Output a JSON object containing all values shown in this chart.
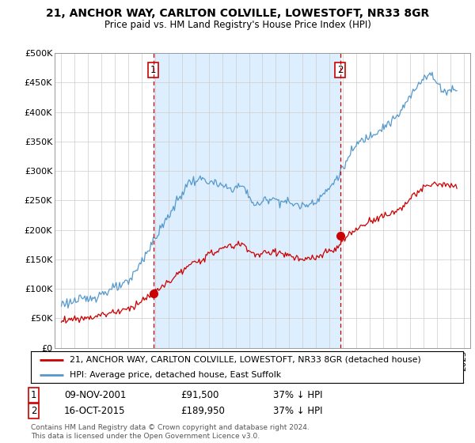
{
  "title": "21, ANCHOR WAY, CARLTON COLVILLE, LOWESTOFT, NR33 8GR",
  "subtitle": "Price paid vs. HM Land Registry's House Price Index (HPI)",
  "legend_line1": "21, ANCHOR WAY, CARLTON COLVILLE, LOWESTOFT, NR33 8GR (detached house)",
  "legend_line2": "HPI: Average price, detached house, East Suffolk",
  "footnote": "Contains HM Land Registry data © Crown copyright and database right 2024.\nThis data is licensed under the Open Government Licence v3.0.",
  "sale1_label": "1",
  "sale1_date": "09-NOV-2001",
  "sale1_price": "£91,500",
  "sale1_hpi": "37% ↓ HPI",
  "sale1_year": 2001.86,
  "sale1_value": 91500,
  "sale2_label": "2",
  "sale2_date": "16-OCT-2015",
  "sale2_price": "£189,950",
  "sale2_hpi": "37% ↓ HPI",
  "sale2_year": 2015.79,
  "sale2_value": 189950,
  "red_color": "#cc0000",
  "blue_color": "#5599cc",
  "shade_color": "#ddeeff",
  "dashed_color": "#cc0000",
  "background_color": "#ffffff",
  "grid_color": "#cccccc",
  "ylim": [
    0,
    500000
  ],
  "ytick_step": 50000,
  "xstart": 1994.5,
  "xend": 2025.5
}
